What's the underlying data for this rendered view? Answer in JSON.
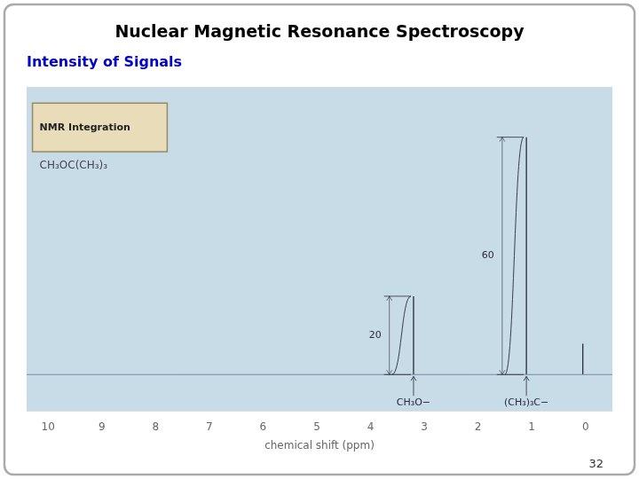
{
  "chart_data": {
    "type": "stem",
    "title": "Nuclear Magnetic Resonance Spectroscopy",
    "subtitle": "Intensity of Signals",
    "title_color": "#000000",
    "subtitle_color": "#0000cc",
    "page_number": "32",
    "x_label": "chemical shift (ppm)",
    "x": [
      3.2,
      1.1,
      0.05
    ],
    "baseline": 0.05,
    "values": [
      0.2805,
      0.85,
      0.1105
    ],
    "group_labels": [
      "CH₃O−",
      "(CH₃)₃C−",
      null
    ],
    "integration_labels": [
      "20",
      "60",
      null
    ],
    "box_label": "NMR Integration",
    "molecule_label": "CH₃OC(CH₃)₃",
    "color": "#2a2a3a",
    "baseline_color": "#7788aa",
    "plot_background": "#c8dce8",
    "border_color": "#aaaaaa",
    "box_color": "#e8ddb8",
    "box_edge_color": "#998866",
    "xlim": [
      10.4,
      -0.5
    ],
    "xticks": [
      10,
      9,
      8,
      7,
      6,
      5,
      4,
      3,
      2,
      1,
      0
    ],
    "ylim": [
      -0.08,
      1.08
    ],
    "tick_labels": "x",
    "grid": false
  }
}
